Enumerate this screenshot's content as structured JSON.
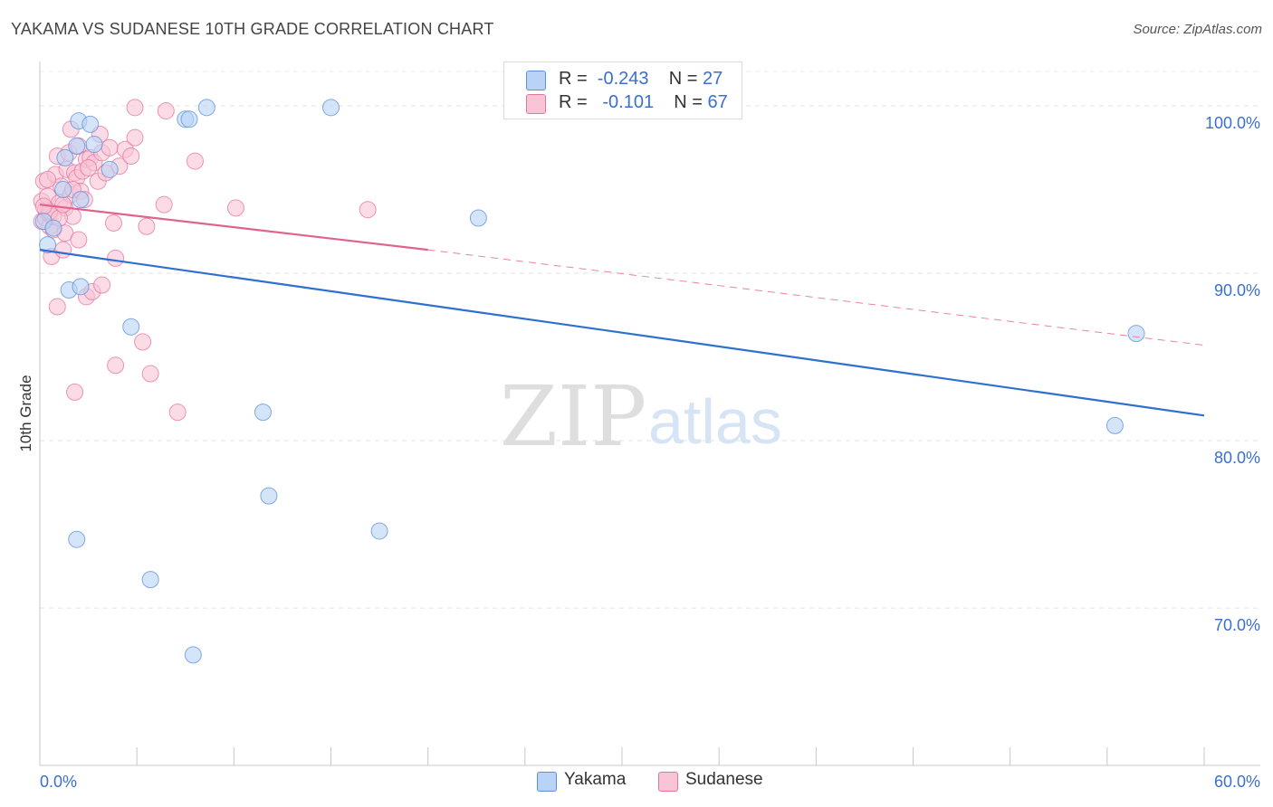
{
  "chart_data": {
    "type": "scatter",
    "title": "YAKAMA VS SUDANESE 10TH GRADE CORRELATION CHART",
    "source": "Source: ZipAtlas.com",
    "watermark": {
      "zip": "ZIP",
      "atlas": "atlas"
    },
    "ylabel": "10th Grade",
    "xlim": [
      0,
      60
    ],
    "ylim": [
      60.6,
      102
    ],
    "x_tick_labels": {
      "left": "0.0%",
      "right": "60.0%"
    },
    "y_ticks": [
      {
        "value": 100,
        "label": "100.0%"
      },
      {
        "value": 90,
        "label": "90.0%"
      },
      {
        "value": 80,
        "label": "80.0%"
      },
      {
        "value": 70,
        "label": "70.0%"
      }
    ],
    "series": [
      {
        "name": "Yakama",
        "color": "#5b8fd9",
        "fill": "#b8d3f5",
        "r": "-0.243",
        "n": "27",
        "points": [
          [
            0.2,
            93.1
          ],
          [
            0.4,
            91.7
          ],
          [
            0.7,
            92.7
          ],
          [
            1.2,
            95.0
          ],
          [
            1.3,
            96.9
          ],
          [
            1.5,
            89.0
          ],
          [
            1.9,
            97.6
          ],
          [
            2.0,
            99.1
          ],
          [
            2.1,
            89.2
          ],
          [
            2.1,
            94.4
          ],
          [
            2.6,
            98.9
          ],
          [
            2.8,
            97.7
          ],
          [
            3.6,
            96.2
          ],
          [
            4.7,
            86.8
          ],
          [
            7.5,
            99.2
          ],
          [
            7.7,
            99.2
          ],
          [
            8.6,
            99.9
          ],
          [
            11.5,
            81.7
          ],
          [
            11.8,
            76.7
          ],
          [
            15.0,
            99.9
          ],
          [
            17.5,
            74.6
          ],
          [
            1.9,
            74.1
          ],
          [
            5.7,
            71.7
          ],
          [
            7.9,
            67.2
          ],
          [
            22.6,
            93.3
          ],
          [
            56.5,
            86.4
          ],
          [
            55.4,
            80.9
          ]
        ],
        "trend": {
          "x0": 0,
          "y0": 91.4,
          "x1": 60,
          "y1": 81.5
        }
      },
      {
        "name": "Sudanese",
        "color": "#e8749b",
        "fill": "#f9c5d6",
        "r": "-0.101",
        "n": "67",
        "points": [
          [
            0.1,
            94.3
          ],
          [
            0.1,
            93.1
          ],
          [
            0.2,
            95.5
          ],
          [
            0.3,
            93.8
          ],
          [
            0.3,
            93.3
          ],
          [
            0.4,
            94.6
          ],
          [
            0.5,
            93.5
          ],
          [
            0.5,
            92.8
          ],
          [
            0.6,
            91.0
          ],
          [
            0.7,
            92.6
          ],
          [
            0.8,
            95.9
          ],
          [
            0.9,
            97.0
          ],
          [
            1.0,
            94.2
          ],
          [
            1.1,
            95.2
          ],
          [
            1.2,
            91.4
          ],
          [
            1.3,
            93.9
          ],
          [
            1.4,
            96.2
          ],
          [
            1.5,
            97.2
          ],
          [
            1.6,
            98.6
          ],
          [
            1.6,
            94.7
          ],
          [
            1.7,
            93.4
          ],
          [
            1.8,
            96.0
          ],
          [
            1.9,
            95.7
          ],
          [
            2.0,
            97.6
          ],
          [
            2.1,
            94.9
          ],
          [
            2.2,
            96.1
          ],
          [
            2.3,
            94.4
          ],
          [
            2.4,
            96.8
          ],
          [
            2.6,
            96.9
          ],
          [
            2.8,
            96.6
          ],
          [
            3.0,
            95.5
          ],
          [
            3.2,
            97.2
          ],
          [
            3.4,
            96.0
          ],
          [
            3.6,
            97.5
          ],
          [
            3.8,
            93.0
          ],
          [
            3.9,
            90.9
          ],
          [
            4.1,
            96.4
          ],
          [
            4.4,
            97.4
          ],
          [
            4.9,
            99.9
          ],
          [
            4.7,
            97.0
          ],
          [
            4.9,
            98.1
          ],
          [
            5.3,
            85.9
          ],
          [
            5.5,
            92.8
          ],
          [
            5.7,
            84.0
          ],
          [
            6.4,
            94.1
          ],
          [
            6.5,
            99.7
          ],
          [
            7.1,
            81.7
          ],
          [
            8.0,
            96.7
          ],
          [
            10.1,
            93.9
          ],
          [
            16.9,
            93.8
          ],
          [
            0.4,
            95.6
          ],
          [
            0.7,
            93.4
          ],
          [
            0.9,
            88.0
          ],
          [
            1.3,
            92.4
          ],
          [
            2.0,
            92.0
          ],
          [
            2.4,
            88.6
          ],
          [
            2.7,
            88.9
          ],
          [
            3.2,
            89.3
          ],
          [
            3.9,
            84.5
          ],
          [
            1.8,
            82.9
          ],
          [
            0.5,
            93.7
          ],
          [
            1.0,
            93.3
          ],
          [
            1.7,
            95.0
          ],
          [
            2.5,
            96.3
          ],
          [
            3.1,
            98.3
          ],
          [
            1.2,
            94.1
          ],
          [
            0.2,
            94.0
          ]
        ],
        "trend_solid": {
          "x0": 0,
          "y0": 94.1,
          "x1": 20,
          "y1": 91.4
        },
        "trend_dashed": {
          "x0": 20,
          "y0": 91.4,
          "x1": 60,
          "y1": 85.7
        }
      }
    ]
  }
}
